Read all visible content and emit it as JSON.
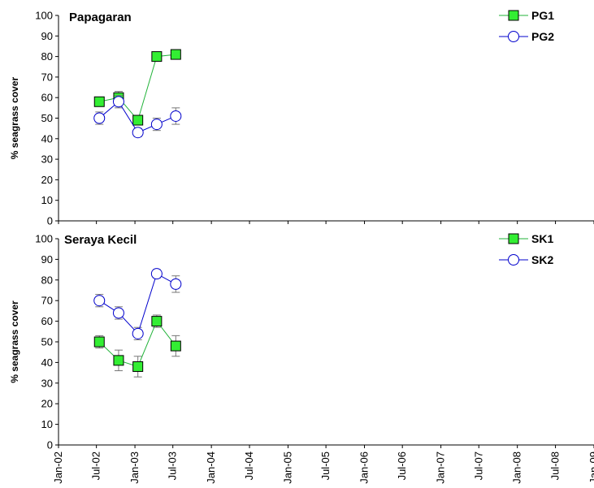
{
  "chart_data": [
    {
      "type": "line",
      "title": "Papagaran",
      "ylabel": "% seagrass cover",
      "ylim": [
        0,
        100
      ],
      "yticks": [
        0,
        10,
        20,
        30,
        40,
        50,
        60,
        70,
        80,
        90,
        100
      ],
      "xlim": [
        "2002-01-01",
        "2009-01-01"
      ],
      "legend_position": "top-right",
      "grid": false,
      "series": [
        {
          "name": "PG1",
          "marker": "square",
          "color": "#22b33a",
          "fill": "#33ee33",
          "x": [
            "2002-07-15",
            "2002-10-15",
            "2003-01-15",
            "2003-04-15",
            "2003-07-15"
          ],
          "values": [
            58,
            60,
            49,
            80,
            81
          ],
          "errors": [
            2,
            3,
            2,
            2,
            1
          ]
        },
        {
          "name": "PG2",
          "marker": "circle",
          "color": "#0000cc",
          "fill": "#ffffff",
          "x": [
            "2002-07-15",
            "2002-10-15",
            "2003-01-15",
            "2003-04-15",
            "2003-07-15"
          ],
          "values": [
            50,
            58,
            43,
            47,
            51
          ],
          "errors": [
            3,
            3,
            2,
            3,
            4
          ]
        }
      ]
    },
    {
      "type": "line",
      "title": "Seraya Kecil",
      "ylabel": "% seagrass cover",
      "ylim": [
        0,
        100
      ],
      "yticks": [
        0,
        10,
        20,
        30,
        40,
        50,
        60,
        70,
        80,
        90,
        100
      ],
      "xlim": [
        "2002-01-01",
        "2009-01-01"
      ],
      "xticks": [
        "Jan-02",
        "Jul-02",
        "Jan-03",
        "Jul-03",
        "Jan-04",
        "Jul-04",
        "Jan-05",
        "Jul-05",
        "Jan-06",
        "Jul-06",
        "Jan-07",
        "Jul-07",
        "Jan-08",
        "Jul-08",
        "Jan-09"
      ],
      "legend_position": "top-right",
      "grid": false,
      "series": [
        {
          "name": "SK1",
          "marker": "square",
          "color": "#22b33a",
          "fill": "#33ee33",
          "x": [
            "2002-07-15",
            "2002-10-15",
            "2003-01-15",
            "2003-04-15",
            "2003-07-15"
          ],
          "values": [
            50,
            41,
            38,
            60,
            48
          ],
          "errors": [
            3,
            5,
            5,
            3,
            5
          ]
        },
        {
          "name": "SK2",
          "marker": "circle",
          "color": "#0000cc",
          "fill": "#ffffff",
          "x": [
            "2002-07-15",
            "2002-10-15",
            "2003-01-15",
            "2003-04-15",
            "2003-07-15"
          ],
          "values": [
            70,
            64,
            54,
            83,
            78
          ],
          "errors": [
            3,
            3,
            3,
            2,
            4
          ]
        }
      ]
    }
  ]
}
